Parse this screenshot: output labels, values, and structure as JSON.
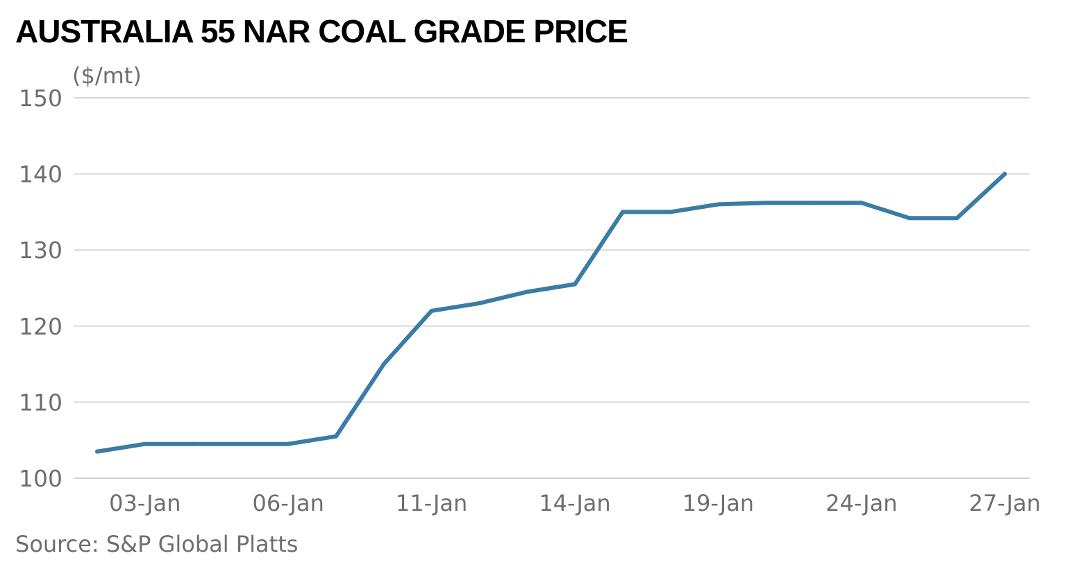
{
  "chart_data": {
    "type": "line",
    "title": "AUSTRALIA 55 NAR COAL GRADE PRICE",
    "ylabel": "($/mt)",
    "xlabel": "",
    "source": "Source: S&P Global Platts",
    "ylim": [
      100,
      150
    ],
    "yticks": [
      100,
      110,
      120,
      130,
      140,
      150
    ],
    "grid": true,
    "categories": [
      "02-Jan",
      "03-Jan",
      "04-Jan",
      "05-Jan",
      "06-Jan",
      "07-Jan",
      "10-Jan",
      "11-Jan",
      "12-Jan",
      "13-Jan",
      "14-Jan",
      "17-Jan",
      "18-Jan",
      "19-Jan",
      "20-Jan",
      "21-Jan",
      "24-Jan",
      "25-Jan",
      "26-Jan",
      "27-Jan"
    ],
    "tick_labels": [
      "03-Jan",
      "06-Jan",
      "11-Jan",
      "14-Jan",
      "19-Jan",
      "24-Jan",
      "27-Jan"
    ],
    "series": [
      {
        "values": [
          103.5,
          104.5,
          104.5,
          104.5,
          104.5,
          105.5,
          115,
          122,
          123,
          124.5,
          125.5,
          135,
          135,
          136,
          136.2,
          136.2,
          136.2,
          134.2,
          134.2,
          140
        ]
      }
    ],
    "colors": {
      "line": "#3a7ca5",
      "grid": "#d9d9d9",
      "tick_text": "#6d6e71",
      "title": "#000000"
    }
  }
}
